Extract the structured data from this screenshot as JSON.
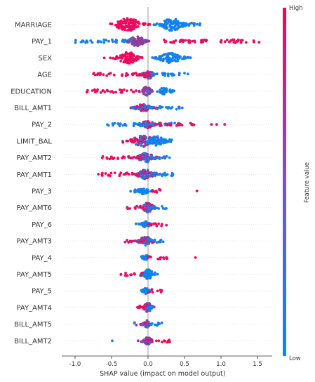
{
  "chart_data": {
    "type": "scatter",
    "subtype": "shap-beeswarm-summary",
    "title": "",
    "xlabel": "SHAP value (impact on model output)",
    "ylabel": "",
    "xlim": [
      -1.2,
      1.8
    ],
    "xticks": [
      "-1.0",
      "-0.5",
      "0.0",
      "0.5",
      "1.0",
      "1.5"
    ],
    "grid": false,
    "zero_line": 0,
    "colorbar": {
      "label": "Feature value",
      "high_label": "High",
      "low_label": "Low",
      "high_color": "#ff0052",
      "low_color": "#008bfb",
      "placement": "right"
    },
    "features": [
      {
        "name": "MARRIAGE",
        "clusters": [
          {
            "center": -0.27,
            "spread": 0.12,
            "thickness": 1.0,
            "n": 110,
            "color": "high"
          },
          {
            "center": 0.33,
            "spread": 0.11,
            "thickness": 0.95,
            "n": 95,
            "color": "low"
          }
        ],
        "tails": [
          {
            "from": 0.45,
            "to": 0.72,
            "color": "low"
          }
        ]
      },
      {
        "name": "PAY_1",
        "clusters": [
          {
            "center": -0.15,
            "spread": 0.07,
            "thickness": 0.8,
            "n": 90,
            "color": "mid"
          }
        ],
        "tails": [
          {
            "from": -1.0,
            "to": -0.2,
            "color": "low"
          },
          {
            "from": 0.2,
            "to": 1.55,
            "color": "high"
          }
        ]
      },
      {
        "name": "SEX",
        "clusters": [
          {
            "center": -0.27,
            "spread": 0.1,
            "thickness": 0.95,
            "n": 90,
            "color": "high"
          },
          {
            "center": 0.31,
            "spread": 0.11,
            "thickness": 0.8,
            "n": 85,
            "color": "low"
          }
        ]
      },
      {
        "name": "AGE",
        "clusters": [
          {
            "center": 0.0,
            "spread": 0.05,
            "thickness": 0.7,
            "n": 60,
            "color": "mixed"
          }
        ],
        "tails": [
          {
            "from": -0.75,
            "to": -0.05,
            "color": "high"
          },
          {
            "from": 0.05,
            "to": 0.55,
            "color": "low"
          }
        ]
      },
      {
        "name": "EDUCATION",
        "clusters": [
          {
            "center": -0.02,
            "spread": 0.04,
            "thickness": 0.7,
            "n": 45,
            "color": "mid"
          },
          {
            "center": 0.22,
            "spread": 0.07,
            "thickness": 0.5,
            "n": 40,
            "color": "low"
          }
        ],
        "tails": [
          {
            "from": -0.85,
            "to": -0.1,
            "color": "high"
          }
        ]
      },
      {
        "name": "BILL_AMT1",
        "clusters": [
          {
            "center": -0.07,
            "spread": 0.07,
            "thickness": 0.6,
            "n": 70,
            "color": "mixed"
          }
        ],
        "tails": [
          {
            "from": 0.0,
            "to": 0.47,
            "color": "low"
          },
          {
            "from": -0.25,
            "to": -0.08,
            "color": "mixed"
          }
        ]
      },
      {
        "name": "PAY_2",
        "clusters": [
          {
            "center": 0.0,
            "spread": 0.06,
            "thickness": 0.6,
            "n": 60,
            "color": "mixed"
          }
        ],
        "tails": [
          {
            "from": -0.6,
            "to": -0.05,
            "color": "low"
          },
          {
            "from": 0.05,
            "to": 0.45,
            "color": "low"
          },
          {
            "from": 0.1,
            "to": 0.63,
            "color": "high"
          }
        ],
        "outliers": [
          {
            "x": 0.87,
            "color": "high"
          },
          {
            "x": 0.94,
            "color": "high"
          },
          {
            "x": 1.05,
            "color": "high"
          }
        ]
      },
      {
        "name": "LIMIT_BAL",
        "clusters": [
          {
            "center": -0.07,
            "spread": 0.1,
            "thickness": 0.9,
            "n": 85,
            "color": "mixed"
          },
          {
            "center": 0.12,
            "spread": 0.08,
            "thickness": 0.75,
            "n": 65,
            "color": "low"
          }
        ],
        "tails": [
          {
            "from": -0.35,
            "to": -0.15,
            "color": "high"
          },
          {
            "from": 0.2,
            "to": 0.4,
            "color": "low"
          }
        ]
      },
      {
        "name": "PAY_AMT2",
        "clusters": [
          {
            "center": -0.03,
            "spread": 0.08,
            "thickness": 0.75,
            "n": 80,
            "color": "mixed"
          }
        ],
        "tails": [
          {
            "from": -0.65,
            "to": -0.1,
            "color": "high"
          },
          {
            "from": 0.0,
            "to": 0.3,
            "color": "low"
          }
        ]
      },
      {
        "name": "PAY_AMT1",
        "clusters": [
          {
            "center": -0.03,
            "spread": 0.08,
            "thickness": 0.75,
            "n": 80,
            "color": "mixed"
          }
        ],
        "tails": [
          {
            "from": -0.7,
            "to": -0.1,
            "color": "high"
          },
          {
            "from": 0.0,
            "to": 0.36,
            "color": "low"
          }
        ]
      },
      {
        "name": "PAY_3",
        "clusters": [
          {
            "center": -0.06,
            "spread": 0.05,
            "thickness": 0.5,
            "n": 40,
            "color": "low"
          }
        ],
        "tails": [
          {
            "from": -0.25,
            "to": 0.0,
            "color": "low"
          },
          {
            "from": 0.0,
            "to": 0.23,
            "color": "high"
          }
        ],
        "outliers": [
          {
            "x": 0.67,
            "color": "high"
          }
        ]
      },
      {
        "name": "PAY_AMT6",
        "clusters": [
          {
            "center": 0.0,
            "spread": 0.05,
            "thickness": 0.8,
            "n": 60,
            "color": "mixed"
          }
        ],
        "tails": [
          {
            "from": -0.35,
            "to": -0.05,
            "color": "high"
          },
          {
            "from": 0.0,
            "to": 0.27,
            "color": "low"
          }
        ]
      },
      {
        "name": "PAY_6",
        "clusters": [
          {
            "center": -0.03,
            "spread": 0.04,
            "thickness": 0.5,
            "n": 35,
            "color": "low"
          }
        ],
        "tails": [
          {
            "from": -0.18,
            "to": 0.0,
            "color": "low"
          },
          {
            "from": 0.0,
            "to": 0.27,
            "color": "high"
          }
        ]
      },
      {
        "name": "PAY_AMT3",
        "clusters": [
          {
            "center": -0.03,
            "spread": 0.07,
            "thickness": 0.7,
            "n": 60,
            "color": "mixed"
          }
        ],
        "tails": [
          {
            "from": -0.32,
            "to": -0.05,
            "color": "high"
          },
          {
            "from": 0.0,
            "to": 0.22,
            "color": "low"
          }
        ]
      },
      {
        "name": "PAY_4",
        "clusters": [
          {
            "center": -0.03,
            "spread": 0.03,
            "thickness": 0.45,
            "n": 30,
            "color": "low"
          }
        ],
        "tails": [
          {
            "from": -0.1,
            "to": 0.0,
            "color": "low"
          },
          {
            "from": 0.0,
            "to": 0.28,
            "color": "high"
          }
        ],
        "outliers": [
          {
            "x": 0.65,
            "color": "high"
          }
        ]
      },
      {
        "name": "PAY_AMT5",
        "clusters": [
          {
            "center": 0.0,
            "spread": 0.05,
            "thickness": 0.75,
            "n": 50,
            "color": "low"
          }
        ],
        "tails": [
          {
            "from": -0.38,
            "to": -0.05,
            "color": "high"
          },
          {
            "from": 0.0,
            "to": 0.14,
            "color": "low"
          }
        ]
      },
      {
        "name": "PAY_5",
        "clusters": [
          {
            "center": -0.03,
            "spread": 0.03,
            "thickness": 0.45,
            "n": 30,
            "color": "low"
          }
        ],
        "tails": [
          {
            "from": -0.1,
            "to": 0.0,
            "color": "low"
          },
          {
            "from": 0.0,
            "to": 0.2,
            "color": "high"
          }
        ]
      },
      {
        "name": "PAY_AMT4",
        "clusters": [
          {
            "center": 0.0,
            "spread": 0.04,
            "thickness": 0.75,
            "n": 45,
            "color": "mixed"
          }
        ],
        "tails": [
          {
            "from": -0.15,
            "to": -0.03,
            "color": "high"
          },
          {
            "from": 0.0,
            "to": 0.08,
            "color": "low"
          }
        ]
      },
      {
        "name": "BILL_AMT5",
        "clusters": [
          {
            "center": -0.02,
            "spread": 0.03,
            "thickness": 0.6,
            "n": 35,
            "color": "mixed"
          }
        ],
        "tails": [
          {
            "from": -0.2,
            "to": -0.03,
            "color": "mixed"
          },
          {
            "from": 0.0,
            "to": 0.2,
            "color": "low"
          }
        ]
      },
      {
        "name": "BILL_AMT2",
        "clusters": [
          {
            "center": 0.0,
            "spread": 0.04,
            "thickness": 0.6,
            "n": 45,
            "color": "mixed"
          }
        ],
        "tails": [
          {
            "from": -0.1,
            "to": -0.02,
            "color": "mixed"
          },
          {
            "from": 0.0,
            "to": 0.3,
            "color": "high"
          }
        ],
        "outliers": [
          {
            "x": -0.49,
            "color": "low"
          }
        ]
      }
    ]
  }
}
